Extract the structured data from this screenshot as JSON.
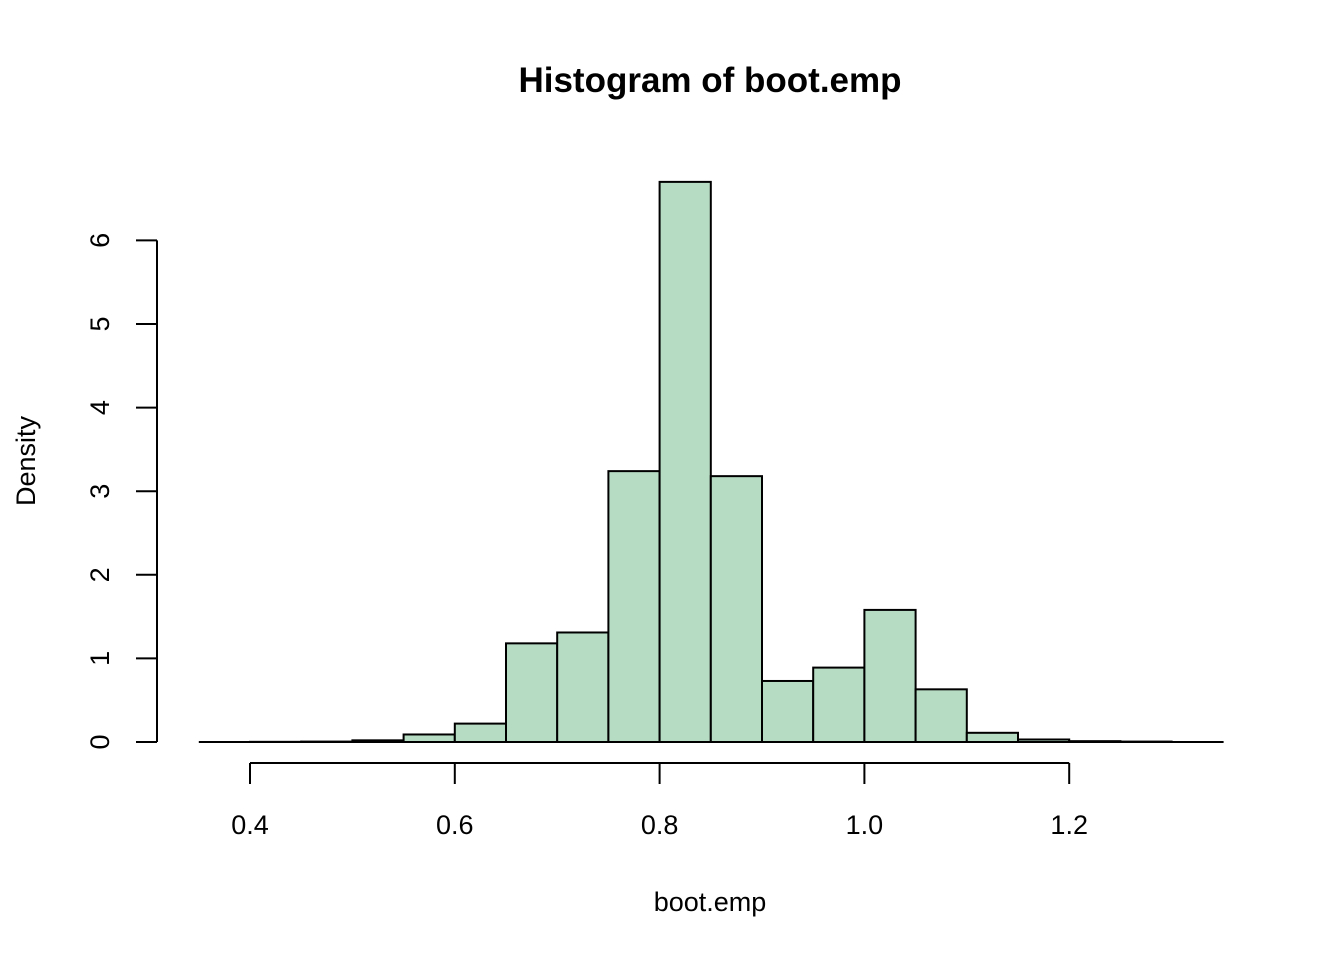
{
  "chart_data": {
    "type": "bar",
    "title": "Histogram of boot.emp",
    "xlabel": "boot.emp",
    "ylabel": "Density",
    "xlim": [
      0.35,
      1.35
    ],
    "ylim": [
      0,
      6.7
    ],
    "x_ticks": [
      0.4,
      0.6,
      0.8,
      1.0,
      1.2
    ],
    "x_tick_labels": [
      "0.4",
      "0.6",
      "0.8",
      "1.0",
      "1.2"
    ],
    "y_ticks": [
      0,
      1,
      2,
      3,
      4,
      5,
      6
    ],
    "y_tick_labels": [
      "0",
      "1",
      "2",
      "3",
      "4",
      "5",
      "6"
    ],
    "bin_width": 0.05,
    "bins": [
      {
        "start": 0.35,
        "end": 0.4,
        "density": 0.0
      },
      {
        "start": 0.4,
        "end": 0.45,
        "density": 0.002
      },
      {
        "start": 0.45,
        "end": 0.5,
        "density": 0.005
      },
      {
        "start": 0.5,
        "end": 0.55,
        "density": 0.02
      },
      {
        "start": 0.55,
        "end": 0.6,
        "density": 0.09
      },
      {
        "start": 0.6,
        "end": 0.65,
        "density": 0.22
      },
      {
        "start": 0.65,
        "end": 0.7,
        "density": 1.18
      },
      {
        "start": 0.7,
        "end": 0.75,
        "density": 1.31
      },
      {
        "start": 0.75,
        "end": 0.8,
        "density": 3.24
      },
      {
        "start": 0.8,
        "end": 0.85,
        "density": 6.7
      },
      {
        "start": 0.85,
        "end": 0.9,
        "density": 3.18
      },
      {
        "start": 0.9,
        "end": 0.95,
        "density": 0.73
      },
      {
        "start": 0.95,
        "end": 1.0,
        "density": 0.89
      },
      {
        "start": 1.0,
        "end": 1.05,
        "density": 1.58
      },
      {
        "start": 1.05,
        "end": 1.1,
        "density": 0.63
      },
      {
        "start": 1.1,
        "end": 1.15,
        "density": 0.11
      },
      {
        "start": 1.15,
        "end": 1.2,
        "density": 0.03
      },
      {
        "start": 1.2,
        "end": 1.25,
        "density": 0.01
      },
      {
        "start": 1.25,
        "end": 1.3,
        "density": 0.005
      }
    ],
    "bar_fill": "#b7dcc4",
    "bar_stroke": "#000000",
    "grid": false
  }
}
